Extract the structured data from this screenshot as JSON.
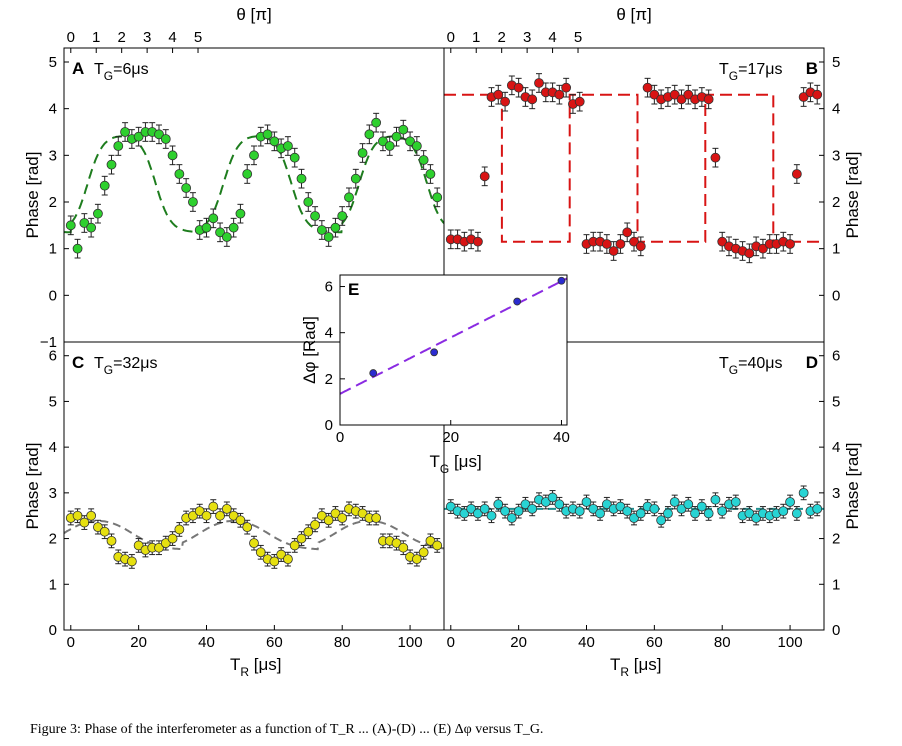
{
  "caption": "Figure 3: Phase of the interferometer as a function of T_R ... (A)-(D) ... (E) Δφ versus T_G.",
  "top_axis": {
    "label": "θ [π]"
  },
  "chart_data": [
    {
      "id": "A",
      "panel_label": "A",
      "title": "T_G=6μs",
      "type": "scatter",
      "xlabel": "",
      "ylabel": "Phase [rad]",
      "xlim": [
        -2,
        110
      ],
      "ylim": [
        -1,
        5.3
      ],
      "yticks": [
        -1,
        0,
        1,
        2,
        3,
        4,
        5
      ],
      "color": "#2ed02e",
      "fit_color": "#1e7d1e",
      "fit_dash": "10,6",
      "top_ticks": [
        0,
        1,
        2,
        3,
        4,
        5
      ],
      "fit": {
        "kind": "step_smooth",
        "low": 1.35,
        "high": 3.45,
        "period": 40,
        "offset": 0,
        "width": 2.2
      },
      "x": [
        0,
        2,
        4,
        6,
        8,
        10,
        12,
        14,
        16,
        18,
        20,
        22,
        24,
        26,
        28,
        30,
        32,
        34,
        36,
        38,
        40,
        42,
        44,
        46,
        48,
        50,
        52,
        54,
        56,
        58,
        60,
        62,
        64,
        66,
        68,
        70,
        72,
        74,
        76,
        78,
        80,
        82,
        84,
        86,
        88,
        90,
        92,
        94,
        96,
        98,
        100,
        102,
        104,
        106,
        108
      ],
      "y": [
        1.5,
        1.0,
        1.55,
        1.45,
        1.75,
        2.35,
        2.8,
        3.2,
        3.5,
        3.35,
        3.4,
        3.5,
        3.5,
        3.45,
        3.35,
        3.0,
        2.6,
        2.3,
        2.0,
        1.4,
        1.45,
        1.65,
        1.35,
        1.25,
        1.45,
        1.75,
        2.6,
        3.0,
        3.4,
        3.45,
        3.3,
        3.15,
        3.2,
        2.95,
        2.5,
        2.0,
        1.7,
        1.4,
        1.25,
        1.45,
        1.7,
        2.1,
        2.5,
        3.05,
        3.45,
        3.7,
        3.3,
        3.2,
        3.4,
        3.55,
        3.3,
        3.2,
        2.9,
        2.6,
        2.1
      ],
      "err": 0.2
    },
    {
      "id": "B",
      "panel_label": "B",
      "title": "T_G=17μs",
      "type": "scatter",
      "xlabel": "",
      "ylabel": "Phase [rad]",
      "xlim": [
        -2,
        110
      ],
      "ylim": [
        -1,
        5.3
      ],
      "yticks": [
        -1,
        0,
        1,
        2,
        3,
        4,
        5
      ],
      "color": "#d81414",
      "fit_color": "#d81414",
      "fit_dash": "12,6",
      "top_ticks": [
        0,
        1,
        2,
        3,
        4,
        5
      ],
      "fit": {
        "kind": "step_sharp",
        "low": 1.15,
        "high": 4.3,
        "period": 40,
        "offset": -10,
        "width": 0.05
      },
      "x": [
        0,
        2,
        4,
        6,
        8,
        10,
        12,
        14,
        16,
        18,
        20,
        22,
        24,
        26,
        28,
        30,
        32,
        34,
        36,
        38,
        40,
        42,
        44,
        46,
        48,
        50,
        52,
        54,
        56,
        58,
        60,
        62,
        64,
        66,
        68,
        70,
        72,
        74,
        76,
        78,
        80,
        82,
        84,
        86,
        88,
        90,
        92,
        94,
        96,
        98,
        100,
        102,
        104,
        106,
        108
      ],
      "y": [
        1.2,
        1.2,
        1.15,
        1.2,
        1.15,
        2.55,
        4.25,
        4.3,
        4.15,
        4.5,
        4.45,
        4.25,
        4.2,
        4.55,
        4.35,
        4.35,
        4.3,
        4.45,
        4.1,
        4.15,
        1.1,
        1.15,
        1.15,
        1.1,
        0.95,
        1.1,
        1.35,
        1.15,
        1.05,
        4.45,
        4.3,
        4.2,
        4.25,
        4.3,
        4.2,
        4.3,
        4.2,
        4.25,
        4.2,
        2.95,
        1.15,
        1.05,
        1.0,
        0.95,
        0.9,
        1.05,
        1.0,
        1.1,
        1.1,
        1.15,
        1.1,
        2.6,
        4.25,
        4.35,
        4.3
      ],
      "err": 0.2
    },
    {
      "id": "C",
      "panel_label": "C",
      "title": "T_G=32μs",
      "type": "scatter",
      "xlabel": "T_R [μs]",
      "ylabel": "Phase [rad]",
      "xlim": [
        -2,
        110
      ],
      "ylim": [
        0,
        6.3
      ],
      "yticks": [
        0,
        1,
        2,
        3,
        4,
        5,
        6
      ],
      "xticks": [
        0,
        20,
        40,
        60,
        80,
        100
      ],
      "color": "#e6e010",
      "fit_color": "#777777",
      "fit_dash": "8,5",
      "fit": {
        "kind": "step_smooth",
        "low": 1.75,
        "high": 2.5,
        "period": 40,
        "offset": -7,
        "width": 4
      },
      "x": [
        0,
        2,
        4,
        6,
        8,
        10,
        12,
        14,
        16,
        18,
        20,
        22,
        24,
        26,
        28,
        30,
        32,
        34,
        36,
        38,
        40,
        42,
        44,
        46,
        48,
        50,
        52,
        54,
        56,
        58,
        60,
        62,
        64,
        66,
        68,
        70,
        72,
        74,
        76,
        78,
        80,
        82,
        84,
        86,
        88,
        90,
        92,
        94,
        96,
        98,
        100,
        102,
        104,
        106,
        108
      ],
      "y": [
        2.45,
        2.5,
        2.35,
        2.5,
        2.25,
        2.15,
        1.95,
        1.6,
        1.55,
        1.5,
        1.85,
        1.75,
        1.8,
        1.8,
        1.9,
        2.0,
        2.2,
        2.45,
        2.5,
        2.6,
        2.5,
        2.7,
        2.5,
        2.65,
        2.5,
        2.4,
        2.25,
        1.9,
        1.7,
        1.55,
        1.5,
        1.65,
        1.55,
        1.85,
        2.0,
        2.15,
        2.3,
        2.5,
        2.4,
        2.55,
        2.45,
        2.65,
        2.6,
        2.55,
        2.45,
        2.45,
        1.95,
        1.95,
        1.9,
        1.8,
        1.6,
        1.55,
        1.7,
        1.95,
        1.85
      ],
      "err": 0.15
    },
    {
      "id": "D",
      "panel_label": "D",
      "title": "T_G=40μs",
      "type": "scatter",
      "xlabel": "T_R [μs]",
      "ylabel": "Phase [rad]",
      "xlim": [
        -2,
        110
      ],
      "ylim": [
        0,
        6.3
      ],
      "yticks": [
        0,
        1,
        2,
        3,
        4,
        5,
        6
      ],
      "xticks": [
        0,
        20,
        40,
        60,
        80,
        100
      ],
      "color": "#28d4d4",
      "fit_color": "#1f8f8f",
      "fit_dash": "8,5",
      "fit": {
        "kind": "flat",
        "low": 2.65,
        "high": 2.65,
        "period": 40,
        "offset": 0,
        "width": 1
      },
      "x": [
        0,
        2,
        4,
        6,
        8,
        10,
        12,
        14,
        16,
        18,
        20,
        22,
        24,
        26,
        28,
        30,
        32,
        34,
        36,
        38,
        40,
        42,
        44,
        46,
        48,
        50,
        52,
        54,
        56,
        58,
        60,
        62,
        64,
        66,
        68,
        70,
        72,
        74,
        76,
        78,
        80,
        82,
        84,
        86,
        88,
        90,
        92,
        94,
        96,
        98,
        100,
        102,
        104,
        106,
        108
      ],
      "y": [
        2.7,
        2.6,
        2.55,
        2.65,
        2.55,
        2.65,
        2.5,
        2.75,
        2.6,
        2.45,
        2.6,
        2.75,
        2.65,
        2.85,
        2.8,
        2.9,
        2.75,
        2.6,
        2.65,
        2.6,
        2.8,
        2.65,
        2.55,
        2.75,
        2.65,
        2.7,
        2.6,
        2.45,
        2.55,
        2.7,
        2.65,
        2.4,
        2.55,
        2.8,
        2.65,
        2.75,
        2.55,
        2.7,
        2.55,
        2.85,
        2.6,
        2.75,
        2.8,
        2.5,
        2.55,
        2.45,
        2.55,
        2.5,
        2.55,
        2.6,
        2.8,
        2.55,
        3.0,
        2.6,
        2.65
      ],
      "err": 0.15
    },
    {
      "id": "E",
      "panel_label": "E",
      "type": "scatter",
      "xlabel": "T_G [μs]",
      "ylabel": "Δφ [Rad]",
      "xlim": [
        0,
        41
      ],
      "ylim": [
        0,
        6.5
      ],
      "xticks": [
        0,
        20,
        40
      ],
      "yticks": [
        0,
        2,
        4,
        6
      ],
      "color": "#2b2bd0",
      "fit_color": "#8a2be2",
      "fit_dash": "12,6",
      "fit": {
        "kind": "linear",
        "intercept": 1.35,
        "slope": 0.122
      },
      "x": [
        6,
        17,
        32,
        40
      ],
      "y": [
        2.25,
        3.15,
        5.35,
        6.25
      ],
      "err": 0
    }
  ]
}
